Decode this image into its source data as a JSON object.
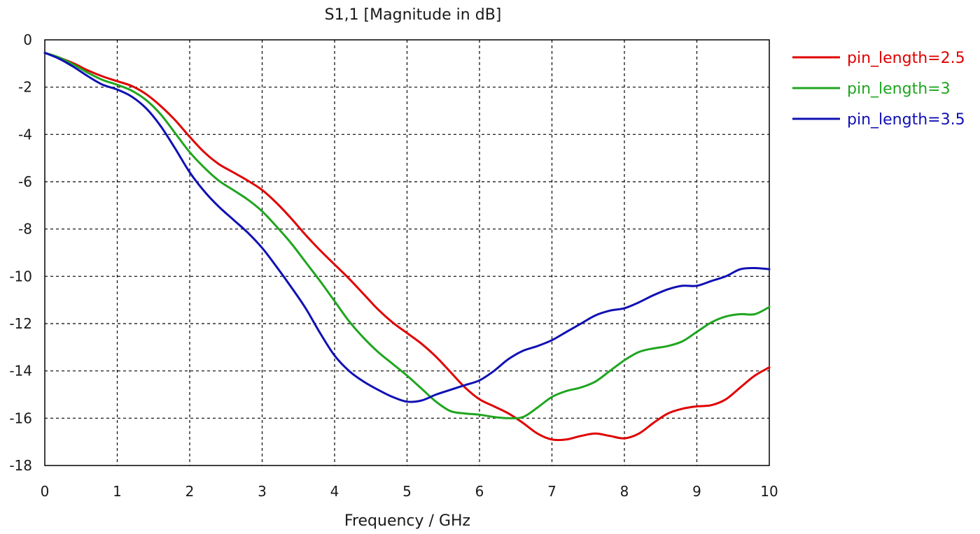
{
  "chart_data": {
    "type": "line",
    "title": "S1,1 [Magnitude in dB]",
    "xlabel": "Frequency / GHz",
    "ylabel": "",
    "xlim": [
      0,
      10
    ],
    "ylim": [
      -18,
      0
    ],
    "x_ticks": [
      "0",
      "1",
      "2",
      "3",
      "4",
      "5",
      "6",
      "7",
      "8",
      "9",
      "10"
    ],
    "y_ticks": [
      "0",
      "-2",
      "-4",
      "-6",
      "-8",
      "-10",
      "-12",
      "-14",
      "-16",
      "-18"
    ],
    "grid": true,
    "legend_position": "right",
    "series": [
      {
        "name": "pin_length=2.5",
        "color": "#e00000",
        "x": [
          0,
          0.2,
          0.4,
          0.6,
          0.8,
          1.0,
          1.2,
          1.4,
          1.6,
          1.8,
          2.0,
          2.2,
          2.4,
          2.6,
          2.8,
          3.0,
          3.2,
          3.4,
          3.6,
          3.8,
          4.0,
          4.2,
          4.4,
          4.6,
          4.8,
          5.0,
          5.2,
          5.4,
          5.6,
          5.8,
          6.0,
          6.2,
          6.4,
          6.6,
          6.8,
          7.0,
          7.2,
          7.4,
          7.6,
          7.8,
          8.0,
          8.2,
          8.4,
          8.6,
          8.8,
          9.0,
          9.2,
          9.4,
          9.6,
          9.8,
          10.0
        ],
        "y": [
          -0.55,
          -0.75,
          -1.0,
          -1.3,
          -1.55,
          -1.75,
          -1.95,
          -2.3,
          -2.8,
          -3.4,
          -4.1,
          -4.75,
          -5.25,
          -5.6,
          -5.95,
          -6.35,
          -6.9,
          -7.55,
          -8.25,
          -8.9,
          -9.5,
          -10.1,
          -10.75,
          -11.4,
          -11.95,
          -12.4,
          -12.85,
          -13.4,
          -14.05,
          -14.7,
          -15.2,
          -15.5,
          -15.8,
          -16.2,
          -16.65,
          -16.9,
          -16.9,
          -16.75,
          -16.65,
          -16.75,
          -16.85,
          -16.65,
          -16.2,
          -15.8,
          -15.6,
          -15.5,
          -15.45,
          -15.2,
          -14.7,
          -14.2,
          -13.85
        ]
      },
      {
        "name": "pin_length=3",
        "color": "#1fa51f",
        "x": [
          0,
          0.2,
          0.4,
          0.6,
          0.8,
          1.0,
          1.2,
          1.4,
          1.6,
          1.8,
          2.0,
          2.2,
          2.4,
          2.6,
          2.8,
          3.0,
          3.2,
          3.4,
          3.6,
          3.8,
          4.0,
          4.2,
          4.4,
          4.6,
          4.8,
          5.0,
          5.2,
          5.4,
          5.6,
          5.8,
          6.0,
          6.2,
          6.4,
          6.6,
          6.8,
          7.0,
          7.2,
          7.4,
          7.6,
          7.8,
          8.0,
          8.2,
          8.4,
          8.6,
          8.8,
          9.0,
          9.2,
          9.4,
          9.6,
          9.8,
          10.0
        ],
        "y": [
          -0.55,
          -0.75,
          -1.05,
          -1.4,
          -1.7,
          -1.9,
          -2.15,
          -2.55,
          -3.15,
          -3.95,
          -4.75,
          -5.4,
          -5.95,
          -6.35,
          -6.75,
          -7.25,
          -7.9,
          -8.6,
          -9.4,
          -10.2,
          -11.05,
          -11.9,
          -12.6,
          -13.2,
          -13.7,
          -14.2,
          -14.75,
          -15.3,
          -15.7,
          -15.8,
          -15.85,
          -15.95,
          -16.0,
          -15.95,
          -15.55,
          -15.1,
          -14.85,
          -14.7,
          -14.45,
          -14.0,
          -13.55,
          -13.2,
          -13.05,
          -12.95,
          -12.75,
          -12.35,
          -11.95,
          -11.7,
          -11.6,
          -11.6,
          -11.3
        ]
      },
      {
        "name": "pin_length=3.5",
        "color": "#1010b4",
        "x": [
          0,
          0.2,
          0.4,
          0.6,
          0.8,
          1.0,
          1.2,
          1.4,
          1.6,
          1.8,
          2.0,
          2.2,
          2.4,
          2.6,
          2.8,
          3.0,
          3.2,
          3.4,
          3.6,
          3.8,
          4.0,
          4.2,
          4.4,
          4.6,
          4.8,
          5.0,
          5.2,
          5.4,
          5.6,
          5.8,
          6.0,
          6.2,
          6.4,
          6.6,
          6.8,
          7.0,
          7.2,
          7.4,
          7.6,
          7.8,
          8.0,
          8.2,
          8.4,
          8.6,
          8.8,
          9.0,
          9.2,
          9.4,
          9.6,
          9.8,
          10.0
        ],
        "y": [
          -0.55,
          -0.8,
          -1.15,
          -1.55,
          -1.9,
          -2.1,
          -2.4,
          -2.9,
          -3.65,
          -4.6,
          -5.6,
          -6.4,
          -7.05,
          -7.6,
          -8.15,
          -8.8,
          -9.6,
          -10.45,
          -11.35,
          -12.4,
          -13.35,
          -14.0,
          -14.45,
          -14.8,
          -15.1,
          -15.3,
          -15.25,
          -15.0,
          -14.8,
          -14.6,
          -14.4,
          -14.0,
          -13.5,
          -13.15,
          -12.95,
          -12.7,
          -12.35,
          -12.0,
          -11.65,
          -11.45,
          -11.35,
          -11.1,
          -10.8,
          -10.55,
          -10.4,
          -10.4,
          -10.2,
          -10.0,
          -9.7,
          -9.65,
          -9.7
        ]
      }
    ]
  }
}
